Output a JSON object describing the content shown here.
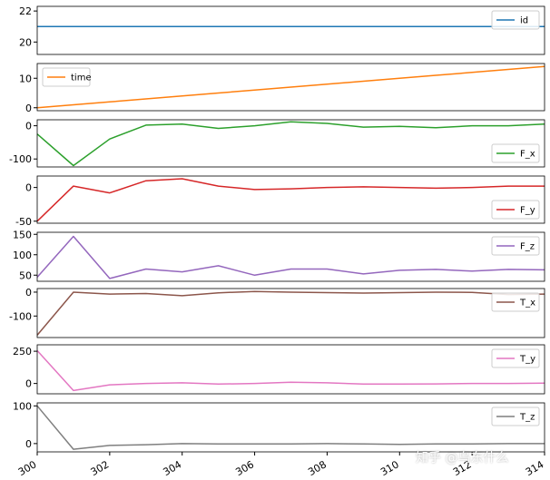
{
  "chart_data": {
    "type": "line",
    "layout": "stacked-subplots-shared-x",
    "x": [
      300,
      301,
      302,
      303,
      304,
      305,
      306,
      307,
      308,
      309,
      310,
      311,
      312,
      313,
      314
    ],
    "xlim": [
      300,
      314
    ],
    "xticks": [
      300,
      302,
      304,
      306,
      308,
      310,
      312,
      314
    ],
    "subplots": [
      {
        "name": "id",
        "color": "#1f77b4",
        "ylim": [
          19.2,
          22.3
        ],
        "yticks": [
          20,
          22
        ],
        "legend": "top-right",
        "values": [
          21,
          21,
          21,
          21,
          21,
          21,
          21,
          21,
          21,
          21,
          21,
          21,
          21,
          21,
          21
        ]
      },
      {
        "name": "time",
        "color": "#ff7f0e",
        "ylim": [
          -1,
          15
        ],
        "yticks": [
          0,
          10
        ],
        "legend": "top-left",
        "values": [
          0,
          1,
          2,
          3,
          4,
          5,
          6,
          7,
          8,
          9,
          10,
          11,
          12,
          13,
          14
        ]
      },
      {
        "name": "F_x",
        "color": "#2ca02c",
        "ylim": [
          -124,
          18
        ],
        "yticks": [
          -100,
          0
        ],
        "legend": "bottom-right",
        "values": [
          -25,
          -120,
          -40,
          2,
          5,
          -8,
          0,
          12,
          7,
          -4,
          -2,
          -6,
          0,
          0,
          5
        ]
      },
      {
        "name": "F_y",
        "color": "#d62728",
        "ylim": [
          -53,
          17
        ],
        "yticks": [
          -50,
          0
        ],
        "legend": "bottom-right",
        "values": [
          -50,
          2,
          -8,
          10,
          13,
          2,
          -3,
          -2,
          0,
          1,
          0,
          -1,
          0,
          2,
          2
        ]
      },
      {
        "name": "F_z",
        "color": "#9467bd",
        "ylim": [
          35,
          155
        ],
        "yticks": [
          50,
          100,
          150
        ],
        "legend": "top-right",
        "values": [
          45,
          145,
          42,
          65,
          58,
          73,
          50,
          65,
          65,
          53,
          62,
          64,
          60,
          64,
          63
        ]
      },
      {
        "name": "T_x",
        "color": "#8c564b",
        "ylim": [
          -190,
          15
        ],
        "yticks": [
          -100,
          0
        ],
        "legend": "top-right",
        "values": [
          -180,
          0,
          -8,
          -6,
          -15,
          -3,
          3,
          0,
          -2,
          -4,
          -2,
          0,
          -1,
          -10,
          -8
        ]
      },
      {
        "name": "T_y",
        "color": "#e377c2",
        "ylim": [
          -80,
          300
        ],
        "yticks": [
          0,
          250
        ],
        "legend": "top-right",
        "values": [
          255,
          -55,
          -10,
          0,
          5,
          -5,
          0,
          10,
          5,
          -5,
          -5,
          -3,
          0,
          0,
          3
        ]
      },
      {
        "name": "T_z",
        "color": "#7f7f7f",
        "ylim": [
          -22,
          108
        ],
        "yticks": [
          0,
          100
        ],
        "legend": "top-right",
        "values": [
          100,
          -15,
          -5,
          -3,
          0,
          -1,
          -1,
          -1,
          0,
          -1,
          -2,
          -1,
          -1,
          0,
          0
        ]
      }
    ]
  },
  "watermark": "知乎 @乌东什么"
}
